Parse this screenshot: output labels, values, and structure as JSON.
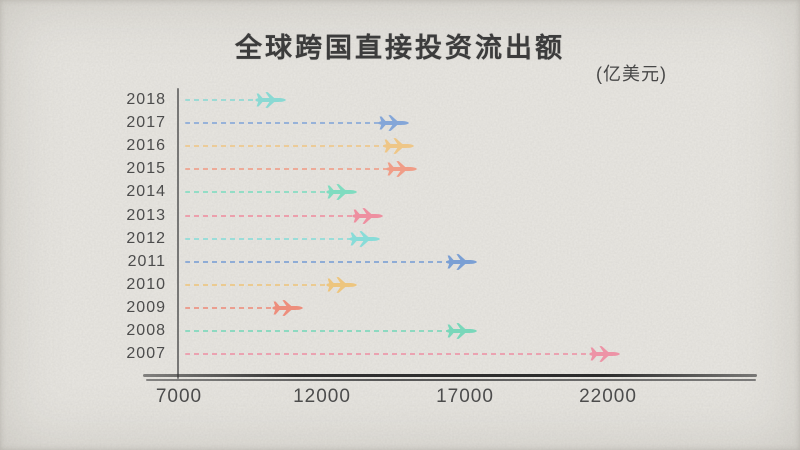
{
  "page": {
    "background_color": "#e9e7e2",
    "text_color": "#3c3c3c"
  },
  "header": {
    "title": "全球跨国直接投资流出额",
    "unit_label": "(亿美元)"
  },
  "chart_data": {
    "type": "bar",
    "orientation": "horizontal",
    "title": "全球跨国直接投资流出额",
    "unit": "亿美元",
    "marker": "airplane-icon",
    "line_style": "dashed",
    "grid": false,
    "legend": false,
    "categories": [
      "2018",
      "2017",
      "2016",
      "2015",
      "2014",
      "2013",
      "2012",
      "2011",
      "2010",
      "2009",
      "2008",
      "2007"
    ],
    "values": [
      10200,
      14500,
      14700,
      14800,
      12700,
      13600,
      13500,
      16900,
      12700,
      10800,
      16900,
      21900
    ],
    "colors": [
      "#8ad9d3",
      "#84a6d8",
      "#eec687",
      "#f09d87",
      "#7fdcc0",
      "#ee8fa0",
      "#88dcd8",
      "#7a9fd4",
      "#edc57e",
      "#ed8e7c",
      "#79d7ba",
      "#ed93a6"
    ],
    "xlabel": "",
    "ylabel": "",
    "x_ticks": [
      7000,
      12000,
      17000,
      22000
    ],
    "xlim": [
      7000,
      22500
    ]
  }
}
